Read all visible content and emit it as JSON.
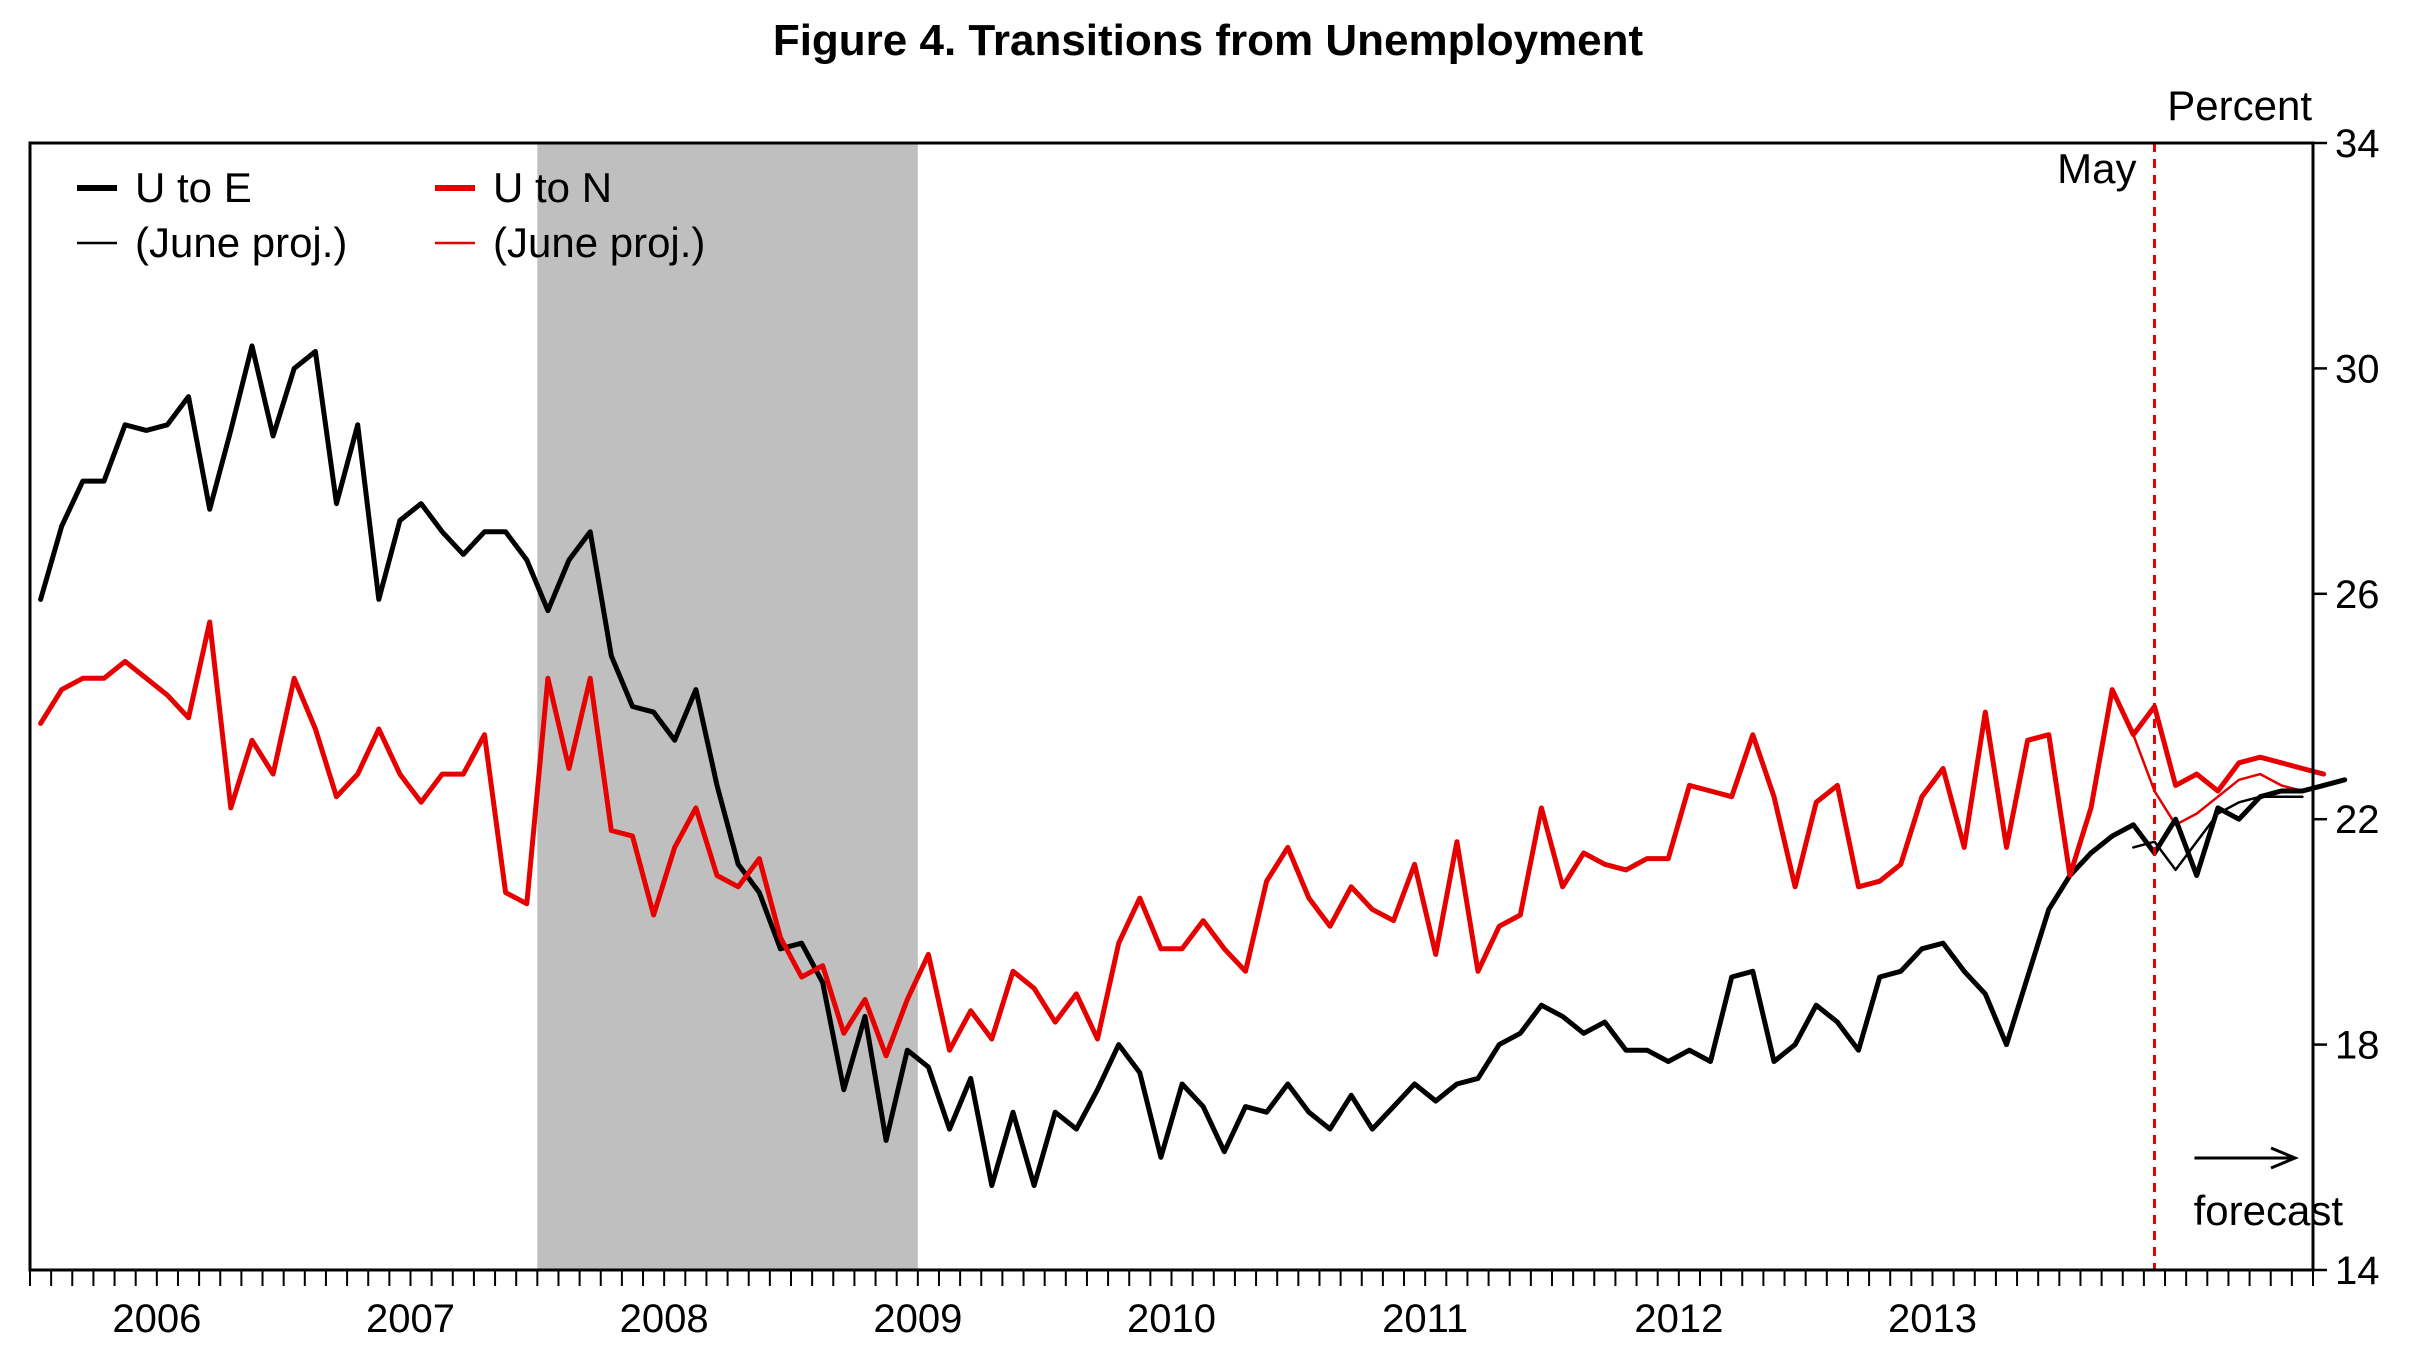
{
  "chart_data": {
    "type": "line",
    "title": "Figure 4. Transitions from Unemployment",
    "y_axis_label": "Percent",
    "xlabel": "",
    "ylim": [
      14,
      34
    ],
    "y_ticks": [
      14,
      18,
      22,
      26,
      30,
      34
    ],
    "y_tick_labels": [
      "14",
      "18",
      "22",
      "26",
      "30",
      "34"
    ],
    "x_range": [
      "2006-01",
      "2014-12"
    ],
    "x_tick_labels": [
      "2006",
      "2007",
      "2008",
      "2009",
      "2010",
      "2011",
      "2012",
      "2013"
    ],
    "grid": false,
    "legend_position": "top-left",
    "recession": {
      "start": "2008-01",
      "end": "2009-06",
      "color": "#bfbfbf"
    },
    "forecast_start": "2014-05",
    "annotations": {
      "vline_label": "May",
      "forecast_label": "forecast"
    },
    "x_start": "2006-01",
    "series": [
      {
        "name": "U to E",
        "color": "#000000",
        "width": "thick",
        "values": [
          25.9,
          27.2,
          28.0,
          28.0,
          29.0,
          28.9,
          29.0,
          29.5,
          27.5,
          28.9,
          30.4,
          28.8,
          30.0,
          30.3,
          27.6,
          29.0,
          25.9,
          27.3,
          27.6,
          27.1,
          26.7,
          27.1,
          27.1,
          26.6,
          25.7,
          26.6,
          27.1,
          24.9,
          24.0,
          23.9,
          23.4,
          24.3,
          22.6,
          21.2,
          20.7,
          19.7,
          19.8,
          19.1,
          17.2,
          18.5,
          16.3,
          17.9,
          17.6,
          16.5,
          17.4,
          15.5,
          16.8,
          15.5,
          16.8,
          16.5,
          17.2,
          18.0,
          17.5,
          16.0,
          17.3,
          16.9,
          16.1,
          16.9,
          16.8,
          17.3,
          16.8,
          16.5,
          17.1,
          16.5,
          16.9,
          17.3,
          17.0,
          17.3,
          17.4,
          18.0,
          18.2,
          18.7,
          18.5,
          18.2,
          18.4,
          17.9,
          17.9,
          17.7,
          17.9,
          17.7,
          19.2,
          19.3,
          17.7,
          18.0,
          18.7,
          18.4,
          17.9,
          19.2,
          19.3,
          19.7,
          19.8,
          19.3,
          18.9,
          18.0,
          19.2,
          20.4,
          21.0,
          21.4,
          21.7,
          21.9,
          21.4,
          22.0,
          21.0,
          22.2,
          22.0,
          22.4,
          22.5,
          22.5,
          22.6,
          22.7
        ]
      },
      {
        "name": "U to N",
        "color": "#e60000",
        "width": "thick",
        "values": [
          23.7,
          24.3,
          24.5,
          24.5,
          24.8,
          24.5,
          24.2,
          23.8,
          25.5,
          22.2,
          23.4,
          22.8,
          24.5,
          23.6,
          22.4,
          22.8,
          23.6,
          22.8,
          22.3,
          22.8,
          22.8,
          23.5,
          20.7,
          20.5,
          24.5,
          22.9,
          24.5,
          21.8,
          21.7,
          20.3,
          21.5,
          22.2,
          21.0,
          20.8,
          21.3,
          19.9,
          19.2,
          19.4,
          18.2,
          18.8,
          17.8,
          18.8,
          19.6,
          17.9,
          18.6,
          18.1,
          19.3,
          19.0,
          18.4,
          18.9,
          18.1,
          19.8,
          20.6,
          19.7,
          19.7,
          20.2,
          19.7,
          19.3,
          20.9,
          21.5,
          20.6,
          20.1,
          20.8,
          20.4,
          20.2,
          21.2,
          19.6,
          21.6,
          19.3,
          20.1,
          20.3,
          22.2,
          20.8,
          21.4,
          21.2,
          21.1,
          21.3,
          21.3,
          22.6,
          22.5,
          22.4,
          23.5,
          22.4,
          20.8,
          22.3,
          22.6,
          20.8,
          20.9,
          21.2,
          22.4,
          22.9,
          21.5,
          23.9,
          21.5,
          23.4,
          23.5,
          21.0,
          22.2,
          24.3,
          23.5,
          24.0,
          22.6,
          22.8,
          22.5,
          23.0,
          23.1,
          23.0,
          22.9,
          22.8
        ]
      },
      {
        "name": "(June proj.)",
        "color": "#000000",
        "width": "thin",
        "x_start": "2014-04",
        "values": [
          21.5,
          21.6,
          21.1,
          21.6,
          22.1,
          22.3,
          22.4,
          22.4,
          22.4
        ]
      },
      {
        "name": "(June proj.)",
        "color": "#e60000",
        "width": "thin",
        "x_start": "2014-04",
        "values": [
          23.5,
          22.5,
          21.9,
          22.1,
          22.4,
          22.7,
          22.8,
          22.6,
          22.5
        ]
      }
    ],
    "legend": [
      {
        "label": "U to E",
        "series_index": 0
      },
      {
        "label": "U to N",
        "series_index": 1
      },
      {
        "label": "(June proj.)",
        "series_index": 2
      },
      {
        "label": "(June proj.)",
        "series_index": 3
      }
    ]
  }
}
